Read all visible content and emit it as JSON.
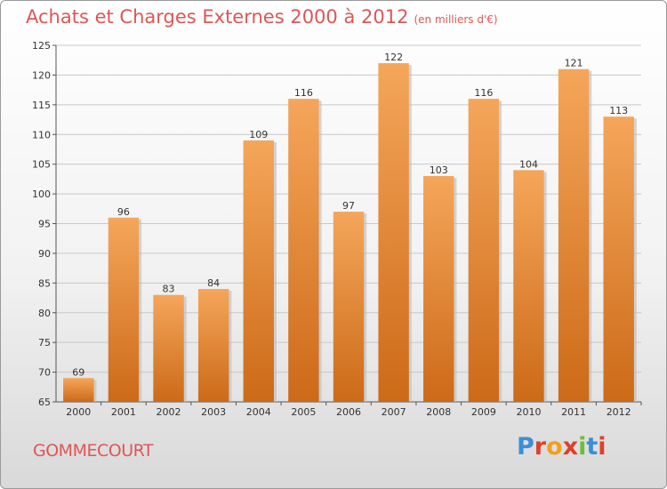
{
  "header": {
    "title": "Achats et Charges Externes 2000 à 2012",
    "unit": "(en milliers d'€)"
  },
  "footer": {
    "city": "GOMMECOURT",
    "logo_letters": [
      "P",
      "r",
      "o",
      "x",
      "i",
      "t",
      "i"
    ],
    "logo_colors": [
      "#3a8fd6",
      "#e0402a",
      "#f0a020",
      "#e0402a",
      "#6cbf3a",
      "#3a8fd6",
      "#e0402a"
    ]
  },
  "colors": {
    "bar_top": "#f5a65a",
    "bar_bottom": "#cc6a18",
    "grid": "#c8c8c8",
    "axis": "#555555"
  },
  "chart_data": {
    "type": "bar",
    "title": "Achats et Charges Externes 2000 à 2012",
    "subtitle": "(en milliers d'€)",
    "categories": [
      "2000",
      "2001",
      "2002",
      "2003",
      "2004",
      "2005",
      "2006",
      "2007",
      "2008",
      "2009",
      "2010",
      "2011",
      "2012"
    ],
    "values": [
      69,
      96,
      83,
      84,
      109,
      116,
      97,
      122,
      103,
      116,
      104,
      121,
      113
    ],
    "ylim": [
      65,
      125
    ],
    "yticks": [
      65,
      70,
      75,
      80,
      85,
      90,
      95,
      100,
      105,
      110,
      115,
      120,
      125
    ],
    "grid": true,
    "xlabel": "",
    "ylabel": ""
  }
}
